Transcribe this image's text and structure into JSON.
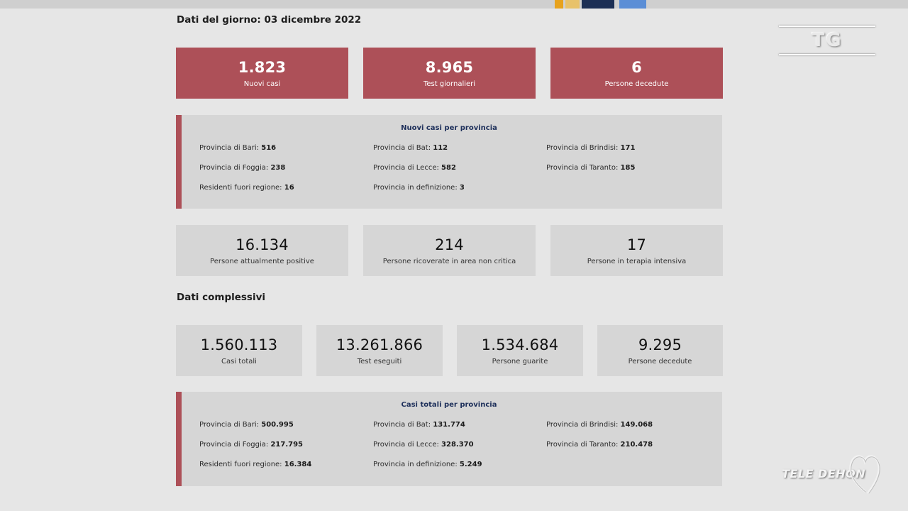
{
  "colors": {
    "accent_red": "#ad5058",
    "card_grey": "#d6d6d6",
    "background": "#e6e6e6",
    "panel_title_blue": "#1d2f5a"
  },
  "daily": {
    "title": "Dati del giorno: 03 dicembre 2022",
    "cards": [
      {
        "value": "1.823",
        "label": "Nuovi casi"
      },
      {
        "value": "8.965",
        "label": "Test giornalieri"
      },
      {
        "value": "6",
        "label": "Persone decedute"
      }
    ],
    "provinces_panel": {
      "title": "Nuovi casi per provincia",
      "items": [
        {
          "label": "Provincia di Bari:",
          "value": "516"
        },
        {
          "label": "Provincia di Bat:",
          "value": "112"
        },
        {
          "label": "Provincia di Brindisi:",
          "value": "171"
        },
        {
          "label": "Provincia di Foggia:",
          "value": "238"
        },
        {
          "label": "Provincia di Lecce:",
          "value": "582"
        },
        {
          "label": "Provincia di Taranto:",
          "value": "185"
        },
        {
          "label": "Residenti fuori regione:",
          "value": "16"
        },
        {
          "label": "Provincia in definizione:",
          "value": "3"
        }
      ]
    },
    "status_cards": [
      {
        "value": "16.134",
        "label": "Persone attualmente positive"
      },
      {
        "value": "214",
        "label": "Persone ricoverate in area non critica"
      },
      {
        "value": "17",
        "label": "Persone in terapia intensiva"
      }
    ]
  },
  "totals": {
    "title": "Dati complessivi",
    "cards": [
      {
        "value": "1.560.113",
        "label": "Casi totali"
      },
      {
        "value": "13.261.866",
        "label": "Test eseguiti"
      },
      {
        "value": "1.534.684",
        "label": "Persone guarite"
      },
      {
        "value": "9.295",
        "label": "Persone decedute"
      }
    ],
    "provinces_panel": {
      "title": "Casi totali per provincia",
      "items": [
        {
          "label": "Provincia di Bari:",
          "value": "500.995"
        },
        {
          "label": "Provincia di Bat:",
          "value": "131.774"
        },
        {
          "label": "Provincia di Brindisi:",
          "value": "149.068"
        },
        {
          "label": "Provincia di Foggia:",
          "value": "217.795"
        },
        {
          "label": "Provincia di Lecce:",
          "value": "328.370"
        },
        {
          "label": "Provincia di Taranto:",
          "value": "210.478"
        },
        {
          "label": "Residenti fuori regione:",
          "value": "16.384"
        },
        {
          "label": "Provincia in definizione:",
          "value": "5.249"
        }
      ]
    }
  },
  "overlay": {
    "tg_logo": "TG",
    "channel_logo": "TELE DEHON",
    "channel_icon": "heart-icon"
  }
}
